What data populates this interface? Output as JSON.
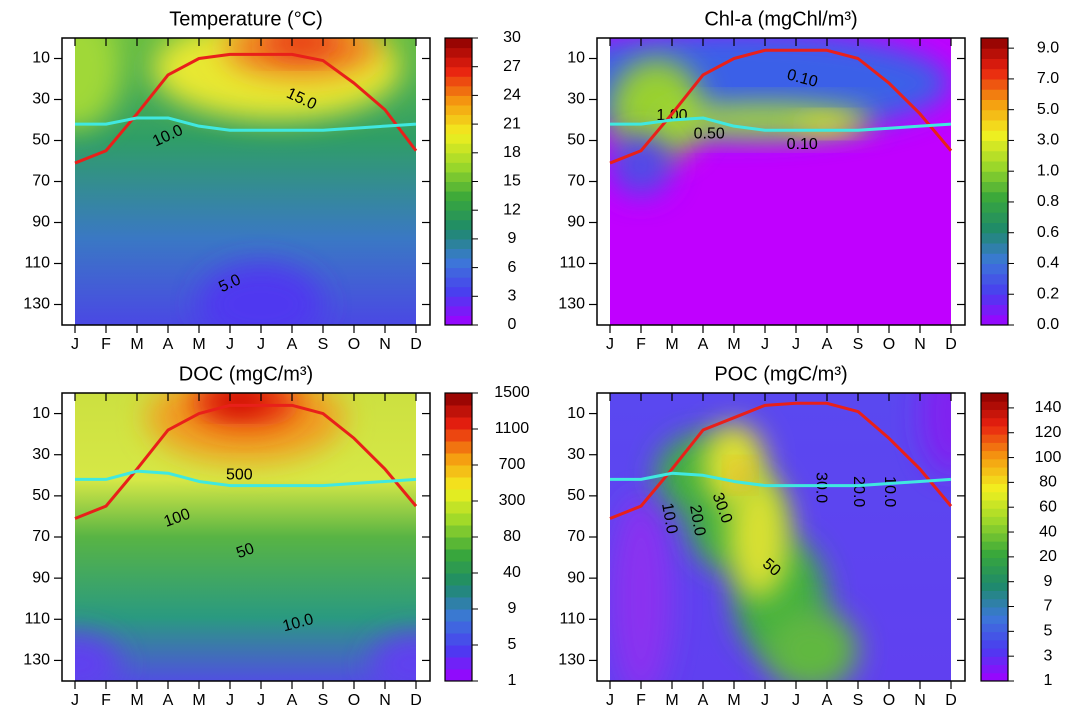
{
  "chart_data": [
    {
      "type": "contour",
      "title": "Temperature (°C)",
      "categories": [
        "J",
        "F",
        "M",
        "A",
        "M",
        "J",
        "J",
        "A",
        "S",
        "O",
        "N",
        "D"
      ],
      "ylim": [
        0,
        140
      ],
      "y_inverted": true,
      "yticks": [
        10,
        30,
        50,
        70,
        90,
        110,
        130
      ],
      "colorbar_ticks": [
        0,
        3,
        6,
        9,
        12,
        15,
        18,
        21,
        24,
        27,
        30
      ],
      "contour_labels": [
        "15.0",
        "10.0",
        "5.0"
      ],
      "series": [
        {
          "color": "#e8201a",
          "values": [
            61,
            55,
            37,
            18,
            10,
            8,
            8,
            8,
            11,
            22,
            35,
            55
          ]
        },
        {
          "color": "#40e8e0",
          "values": [
            42,
            42,
            39,
            39,
            43,
            45,
            45,
            45,
            45,
            44,
            43,
            42
          ]
        }
      ]
    },
    {
      "type": "contour",
      "title": "Chl-a (mgChl/m³)",
      "categories": [
        "J",
        "F",
        "M",
        "A",
        "M",
        "J",
        "J",
        "A",
        "S",
        "O",
        "N",
        "D"
      ],
      "ylim": [
        0,
        140
      ],
      "y_inverted": true,
      "yticks": [
        10,
        30,
        50,
        70,
        90,
        110,
        130
      ],
      "colorbar_ticks": [
        {
          "value": 0,
          "label": "0.0"
        },
        {
          "value": 0.2,
          "label": "0.2"
        },
        {
          "value": 0.4,
          "label": "0.4"
        },
        {
          "value": 0.6,
          "label": "0.6"
        },
        {
          "value": 0.8,
          "label": "0.8"
        },
        {
          "value": 1,
          "label": "1.0"
        },
        {
          "value": 3,
          "label": "3.0"
        },
        {
          "value": 5,
          "label": "5.0"
        },
        {
          "value": 7,
          "label": "7.0"
        },
        {
          "value": 9,
          "label": "9.0"
        }
      ],
      "contour_labels": [
        "0.10",
        "1.00",
        "0.50",
        "0.10"
      ],
      "series": [
        {
          "color": "#e8201a",
          "values": [
            61,
            55,
            37,
            18,
            10,
            6,
            6,
            6,
            10,
            22,
            37,
            55
          ]
        },
        {
          "color": "#40e8e0",
          "values": [
            42,
            42,
            40,
            39,
            43,
            45,
            45,
            45,
            45,
            44,
            43,
            42
          ]
        }
      ]
    },
    {
      "type": "contour",
      "title": "DOC (mgC/m³)",
      "categories": [
        "J",
        "F",
        "M",
        "A",
        "M",
        "J",
        "J",
        "A",
        "S",
        "O",
        "N",
        "D"
      ],
      "ylim": [
        0,
        140
      ],
      "y_inverted": true,
      "yticks": [
        10,
        30,
        50,
        70,
        90,
        110,
        130
      ],
      "colorbar_ticks": [
        1,
        5,
        9,
        40,
        80,
        300,
        700,
        1100,
        1500
      ],
      "contour_labels": [
        "500",
        "100",
        "50",
        "10.0"
      ],
      "series": [
        {
          "color": "#e8201a",
          "values": [
            61,
            55,
            37,
            18,
            10,
            6,
            6,
            6,
            10,
            22,
            37,
            55
          ]
        },
        {
          "color": "#40e8e0",
          "values": [
            42,
            42,
            38,
            39,
            43,
            45,
            45,
            45,
            45,
            44,
            43,
            42
          ]
        }
      ]
    },
    {
      "type": "contour",
      "title": "POC (mgC/m³)",
      "categories": [
        "J",
        "F",
        "M",
        "A",
        "M",
        "J",
        "J",
        "A",
        "S",
        "O",
        "N",
        "D"
      ],
      "ylim": [
        0,
        140
      ],
      "y_inverted": true,
      "yticks": [
        10,
        30,
        50,
        70,
        90,
        110,
        130
      ],
      "colorbar_ticks": [
        1,
        3,
        5,
        7,
        9,
        20,
        40,
        60,
        80,
        100,
        120,
        140
      ],
      "contour_labels": [
        "10.0",
        "20.0",
        "30.0",
        "50",
        "30.0",
        "20.0",
        "10.0"
      ],
      "series": [
        {
          "color": "#e8201a",
          "values": [
            61,
            55,
            37,
            18,
            12,
            6,
            5,
            5,
            9,
            22,
            37,
            55
          ]
        },
        {
          "color": "#40e8e0",
          "values": [
            42,
            42,
            39,
            40,
            43,
            45,
            45,
            45,
            45,
            44,
            43,
            42
          ]
        }
      ]
    }
  ]
}
